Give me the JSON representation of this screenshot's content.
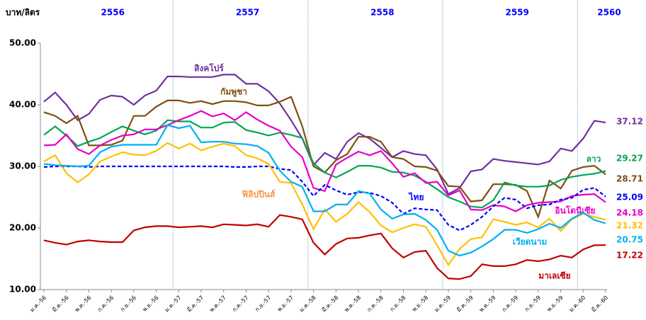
{
  "chart_data": {
    "type": "line",
    "y_label": "บาท/ลิตร",
    "year_labels": [
      "2556",
      "2557",
      "2558",
      "2559",
      "2560"
    ],
    "categories": [
      "ม.ค.-56",
      null,
      "มี.ค.-56",
      null,
      "พ.ค.-56",
      null,
      "ก.ค.-56",
      null,
      "ก.ย.-56",
      null,
      "พ.ย.-56",
      null,
      "ม.ค.-57",
      null,
      "มี.ค.-57",
      null,
      "พ.ค.-57",
      null,
      "ก.ค.-57",
      null,
      "ก.ย.-57",
      null,
      "พ.ย.-57",
      null,
      "ม.ค.-58",
      null,
      "มี.ค.-58",
      null,
      "พ.ค.-58",
      null,
      "ก.ค.-58",
      null,
      "ก.ย.-58",
      null,
      "พ.ย.-58",
      null,
      "ม.ค.-59",
      null,
      "มี.ค.-59",
      null,
      "พ.ค.-59",
      null,
      "ก.ค.-59",
      null,
      "ก.ย.-59",
      null,
      "พ.ย.-59",
      null,
      "ม.ค.-60",
      null,
      "มี.ค.-60"
    ],
    "ylim": [
      10,
      50
    ],
    "yticks": [
      {
        "value": 10,
        "label": "10.00"
      },
      {
        "value": 20,
        "label": "20.00"
      },
      {
        "value": 30,
        "label": "30.00"
      },
      {
        "value": 40,
        "label": "40.00"
      },
      {
        "value": 50,
        "label": "50.00"
      }
    ],
    "series": [
      {
        "name": "สิงคโปร์",
        "color": "#7030a0",
        "values": [
          40.5,
          42,
          40,
          37.5,
          38.5,
          40.8,
          41.5,
          41.3,
          40,
          41.5,
          42.3,
          44.6,
          44.6,
          44.5,
          44.5,
          44.5,
          44.9,
          44.9,
          43.4,
          43.4,
          42.2,
          40.2,
          37.5,
          34.5,
          30.2,
          32.2,
          31.2,
          34,
          35.4,
          34.5,
          33,
          31.5,
          32.5,
          32,
          31.8,
          29.5,
          25.5,
          26.5,
          29.2,
          29.5,
          31.2,
          30.9,
          30.7,
          30.5,
          30.3,
          30.8,
          32.9,
          32.5,
          34.5,
          37.4,
          37.12
        ]
      },
      {
        "name": "กัมพูชา",
        "color": "#7f4f0f",
        "values": [
          38.8,
          38.2,
          37,
          38.2,
          33.4,
          33.4,
          33.5,
          34.2,
          38.2,
          38.2,
          39.7,
          40.7,
          40.7,
          40.3,
          40.6,
          40.1,
          40.6,
          40.6,
          40.4,
          39.9,
          39.9,
          40.5,
          41.3,
          36.5,
          30,
          29,
          31,
          32,
          34.8,
          34.8,
          34,
          31.5,
          31.2,
          30,
          29.9,
          29.3,
          26.8,
          26.7,
          24.3,
          24.5,
          27.1,
          27.1,
          27,
          26,
          21.8,
          27.7,
          26.4,
          29.3,
          29.9,
          30.1,
          28.71
        ]
      },
      {
        "name": "ลาว",
        "color": "#00a651",
        "values": [
          35.1,
          36.5,
          35,
          33.3,
          34,
          34.6,
          35.6,
          36.5,
          35.8,
          35.2,
          35.8,
          37.5,
          37.3,
          37.3,
          36.3,
          36.3,
          37.1,
          37.2,
          35.9,
          35.5,
          35,
          35.5,
          35.1,
          34.6,
          30.5,
          29,
          28.2,
          29.1,
          30.1,
          30.1,
          29.8,
          29.1,
          29,
          28.5,
          27.5,
          26.3,
          25,
          24.3,
          23.5,
          23.3,
          24.5,
          27.4,
          26.9,
          26.7,
          26.7,
          26.9,
          27.8,
          28.3,
          28.6,
          28.8,
          29.27
        ]
      },
      {
        "name": "อินโดนีเซีย",
        "color": "#e600c8",
        "values": [
          33.4,
          33.5,
          35.2,
          32.8,
          32,
          33.4,
          34.3,
          35,
          35.2,
          36,
          36,
          36.7,
          37.5,
          38.2,
          39,
          38.1,
          38.6,
          37.5,
          38.8,
          37.6,
          36.6,
          35.8,
          33.2,
          31.5,
          26.5,
          26,
          30.3,
          31.4,
          32.4,
          31.8,
          32.5,
          30.5,
          28.3,
          28.9,
          27.3,
          27.5,
          25.3,
          26.1,
          23,
          22.9,
          23.7,
          23.5,
          22.7,
          23.7,
          24.1,
          24.2,
          24.3,
          25.2,
          25.4,
          25.5,
          24.18
        ]
      },
      {
        "name": "ไทย",
        "color": "#0000ff",
        "dashed": true,
        "values": [
          29.9,
          30,
          30,
          30,
          29.9,
          30,
          30,
          30,
          30,
          30,
          30,
          30,
          30,
          30,
          30,
          30,
          30,
          29.9,
          29.9,
          30,
          30,
          29.6,
          29.4,
          27.5,
          25.2,
          27,
          26.1,
          25.4,
          25.8,
          25.7,
          25.2,
          24.1,
          22.3,
          23.2,
          23,
          22.9,
          20.5,
          19.6,
          20.5,
          21.8,
          23.5,
          24.9,
          24.6,
          23.2,
          23.7,
          23.8,
          24.6,
          24.9,
          26.2,
          26.5,
          25.09
        ]
      },
      {
        "name": "ฟิลิปปินส์",
        "color": "#ffc000",
        "label_color": "#f79646",
        "values": [
          30.8,
          31.8,
          28.9,
          27.4,
          28.7,
          30.8,
          31.6,
          32.3,
          31.9,
          31.8,
          32.5,
          33.8,
          32.9,
          33.7,
          32.6,
          33.2,
          33.7,
          33.3,
          31.8,
          31.3,
          30.4,
          27.5,
          27.3,
          23.8,
          19.8,
          23,
          21,
          22.3,
          24.2,
          22.6,
          20.4,
          19.3,
          20,
          20.6,
          20.2,
          17.2,
          14,
          16.6,
          18.2,
          18.5,
          21.4,
          21,
          20.5,
          20.9,
          20.1,
          21.5,
          19.5,
          21.4,
          22.3,
          21.8,
          21.32
        ]
      },
      {
        "name": "เวียดนาม",
        "color": "#00b0f0",
        "values": [
          30.4,
          30.2,
          30.1,
          30,
          30.1,
          32.3,
          33.2,
          33.5,
          33.5,
          33.5,
          33.5,
          36.7,
          36.2,
          36.6,
          33.9,
          34,
          34,
          33.7,
          33.6,
          33.3,
          32.2,
          29.3,
          27.5,
          26.7,
          22.7,
          22.7,
          23.8,
          23.8,
          26,
          25.6,
          23,
          21.5,
          22.2,
          22.3,
          21.3,
          19.7,
          16.3,
          15.5,
          16,
          17,
          18.2,
          19.7,
          19.7,
          19.2,
          19.8,
          20.7,
          20,
          21.5,
          22.5,
          21.3,
          20.75
        ]
      },
      {
        "name": "มาเลเซีย",
        "color": "#c00000",
        "values": [
          18,
          17.6,
          17.3,
          17.8,
          18,
          17.8,
          17.7,
          17.7,
          19.6,
          20.1,
          20.3,
          20.3,
          20.1,
          20.2,
          20.3,
          20.1,
          20.6,
          20.5,
          20.4,
          20.6,
          20.2,
          22.1,
          21.8,
          21.4,
          17.6,
          15.7,
          17.4,
          18.3,
          18.4,
          18.8,
          19.1,
          16.7,
          15.2,
          16.1,
          16.3,
          13.5,
          11.8,
          11.7,
          12.2,
          14.1,
          13.8,
          13.8,
          14.1,
          14.8,
          14.6,
          14.9,
          15.5,
          15.2,
          16.5,
          17.2,
          17.22
        ]
      }
    ]
  }
}
